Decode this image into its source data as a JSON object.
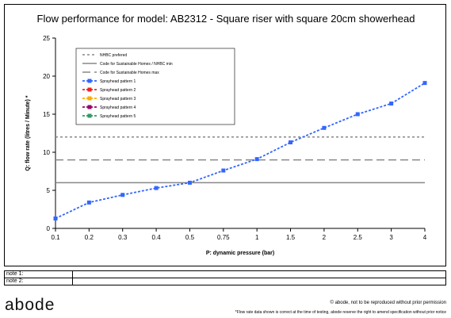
{
  "chart_data": {
    "type": "line",
    "title": "Flow performance for model: AB2312 - Square riser with square 20cm showerhead",
    "xlabel": "P: dynamic pressure (bar)",
    "ylabel": "Q: flow rate (litres / Minute) *",
    "categories": [
      "0.1",
      "0.2",
      "0.3",
      "0.4",
      "0.5",
      "0.75",
      "1",
      "1.5",
      "2",
      "2.5",
      "3",
      "4"
    ],
    "ylim": [
      0,
      25
    ],
    "yticks": [
      "0",
      "5",
      "10",
      "15",
      "20",
      "25"
    ],
    "grid": false,
    "legend_position": "top-left",
    "series": [
      {
        "name": "Sprayhead pattern 1",
        "color": "#3366ff",
        "values": [
          1.3,
          3.4,
          4.4,
          5.3,
          6.0,
          7.6,
          9.1,
          11.3,
          13.2,
          15.0,
          16.4,
          19.1
        ]
      }
    ],
    "reference_lines": [
      {
        "name": "NHBC prefered",
        "value": 12,
        "color": "#888888",
        "style": "dotted"
      },
      {
        "name": "Code for Sustainable Homes / NHBC min",
        "value": 6,
        "color": "#888888",
        "style": "solid"
      },
      {
        "name": "Code for Sustainable Homes max",
        "value": 9,
        "color": "#888888",
        "style": "dashed"
      }
    ],
    "legend": [
      {
        "name": "NHBC prefered",
        "color": "#888888",
        "style": "dotted"
      },
      {
        "name": "Code for Sustainable Homes / NHBC min",
        "color": "#888888",
        "style": "solid"
      },
      {
        "name": "Code for Sustainable Homes max",
        "color": "#888888",
        "style": "dashed"
      },
      {
        "name": "Sprayhead pattern 1",
        "color": "#3366ff",
        "style": "marker"
      },
      {
        "name": "Sprayhead pattern 2",
        "color": "#ee2222",
        "style": "marker"
      },
      {
        "name": "Sprayhead pattern 3",
        "color": "#ffaa00",
        "style": "marker"
      },
      {
        "name": "Sprayhead pattern 4",
        "color": "#990066",
        "style": "marker"
      },
      {
        "name": "Sprayhead pattern 5",
        "color": "#339966",
        "style": "marker"
      }
    ]
  },
  "notes": [
    {
      "label": "note 1:",
      "value": ""
    },
    {
      "label": "note 2:",
      "value": ""
    }
  ],
  "footer": {
    "logo": "abode",
    "copyright": "© abode, not to be reproduced without prior permission",
    "disclaimer": "*Flow rate data shown is correct at the time of testing, abode reserve the right to amend specification without prior notice"
  }
}
